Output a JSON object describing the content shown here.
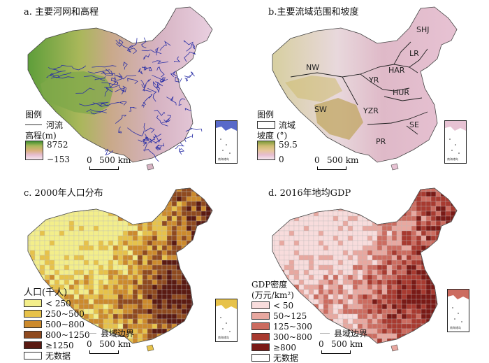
{
  "panels": {
    "a": {
      "title": "a. 主要河网和高程",
      "legend_title": "图例",
      "river_label": "河流",
      "elev_title": "高程(m)",
      "elev_max": "8752",
      "elev_min": "−153",
      "scale_zero": "0",
      "scale_label": "500 km",
      "colors": {
        "low": "#f6e7ee",
        "mid": "#d9b07a",
        "high": "#3e8f2f",
        "river": "#2a2fa6"
      }
    },
    "b": {
      "title": "b.主要流域范围和坡度",
      "legend_title": "图例",
      "basin_label": "流域",
      "slope_title": "坡度 (°)",
      "slope_max": "59.5",
      "slope_min": "0",
      "scale_zero": "0",
      "scale_label": "500 km",
      "basins": [
        "SHJ",
        "LR",
        "NW",
        "HAR",
        "YR",
        "HUR",
        "SW",
        "YZR",
        "SE",
        "PR"
      ]
    },
    "c": {
      "title": "c. 2000年人口分布",
      "legend_title": "人口(千人)",
      "classes": [
        {
          "label": "< 250",
          "color": "#f3ee8a"
        },
        {
          "label": "250~500",
          "color": "#e7c24a"
        },
        {
          "label": "500~800",
          "color": "#cc8a2c"
        },
        {
          "label": "800~1250",
          "color": "#8f4a1f"
        },
        {
          "label": "≥1250",
          "color": "#5a1a12"
        },
        {
          "label": "无数据",
          "color": "#ffffff"
        }
      ],
      "boundary_label": "县域边界",
      "scale_zero": "0",
      "scale_label": "500 km"
    },
    "d": {
      "title": "d. 2016年地均GDP",
      "legend_title_1": "GDP密度",
      "legend_title_2": "(万元/km²)",
      "classes": [
        {
          "label": "< 50",
          "color": "#f8dcdc"
        },
        {
          "label": "50~125",
          "color": "#e8a8a0"
        },
        {
          "label": "125~300",
          "color": "#cc6c60"
        },
        {
          "label": "300~800",
          "color": "#a83a30"
        },
        {
          "label": "≥800",
          "color": "#7a1a16"
        },
        {
          "label": "无数据",
          "color": "#ffffff"
        }
      ],
      "boundary_label": "县域边界",
      "scale_zero": "0",
      "scale_label": "500 km"
    }
  }
}
